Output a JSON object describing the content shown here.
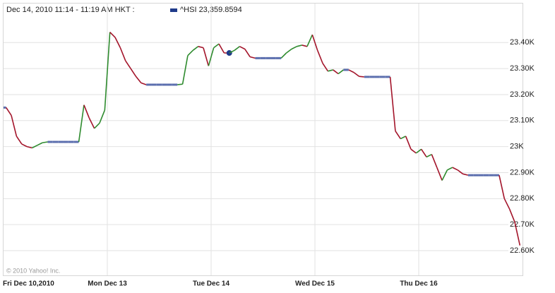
{
  "chart_data": {
    "type": "line",
    "hover": {
      "time": "Dec 14, 2010 11:14 - 11:19 AM HKT :",
      "value": 23359.8594,
      "value_label": "23,359.8594"
    },
    "credit": "© 2010 Yahoo! Inc.",
    "categories": [
      "Fri Dec 10,2010",
      null,
      null,
      null,
      null,
      null,
      null,
      null,
      null,
      null,
      null,
      null,
      null,
      null,
      null,
      null,
      null,
      null,
      null,
      null,
      "Mon Dec 13",
      null,
      null,
      null,
      null,
      null,
      null,
      null,
      null,
      null,
      null,
      null,
      null,
      null,
      null,
      null,
      null,
      null,
      null,
      null,
      "Tue Dec 14",
      null,
      null,
      null,
      null,
      null,
      null,
      null,
      null,
      null,
      null,
      null,
      null,
      null,
      null,
      null,
      null,
      null,
      null,
      null,
      "Wed Dec 15",
      null,
      null,
      null,
      null,
      null,
      null,
      null,
      null,
      null,
      null,
      null,
      null,
      null,
      null,
      null,
      null,
      null,
      null,
      null,
      "Thu Dec 16",
      null,
      null,
      null,
      null,
      null,
      null,
      null,
      null,
      null,
      null,
      null,
      null,
      null,
      null,
      null,
      null,
      null,
      null,
      null
    ],
    "series": [
      {
        "name": "^HSI",
        "color": "#1f3a8a",
        "values": [
          23150,
          23120,
          23040,
          23010,
          23000,
          22995,
          23005,
          23015,
          23018,
          23018,
          23018,
          23018,
          23018,
          23018,
          23018,
          23160,
          23110,
          23070,
          23090,
          23140,
          23440,
          23420,
          23380,
          23330,
          23300,
          23270,
          23245,
          23238,
          23238,
          23238,
          23238,
          23238,
          23238,
          23238,
          23240,
          23350,
          23370,
          23385,
          23380,
          23310,
          23380,
          23395,
          23360,
          23359.8594,
          23370,
          23385,
          23375,
          23345,
          23340,
          23340,
          23340,
          23340,
          23340,
          23340,
          23360,
          23375,
          23385,
          23390,
          23385,
          23430,
          23370,
          23320,
          23290,
          23295,
          23280,
          23295,
          23295,
          23285,
          23270,
          23268,
          23268,
          23268,
          23268,
          23268,
          23268,
          23060,
          23030,
          23040,
          22990,
          22975,
          22990,
          22960,
          22970,
          22920,
          22870,
          22910,
          22920,
          22910,
          22895,
          22890,
          22890,
          22890,
          22890,
          22890,
          22890,
          22890,
          22800,
          22760,
          22710,
          22620
        ]
      }
    ],
    "up_color": "#2e8b2e",
    "down_color": "#a3142a",
    "flat_color": "#5b6eae",
    "ylim": [
      22505,
      23550
    ],
    "yticks": [
      {
        "value": 22600,
        "label": "22.60K"
      },
      {
        "value": 22700,
        "label": "22.70K"
      },
      {
        "value": 22800,
        "label": "22.80K"
      },
      {
        "value": 22900,
        "label": "22.90K"
      },
      {
        "value": 23000,
        "label": "23K"
      },
      {
        "value": 23100,
        "label": "23.10K"
      },
      {
        "value": 23200,
        "label": "23.20K"
      },
      {
        "value": 23300,
        "label": "23.30K"
      },
      {
        "value": 23400,
        "label": "23.40K"
      }
    ],
    "grid": true
  }
}
